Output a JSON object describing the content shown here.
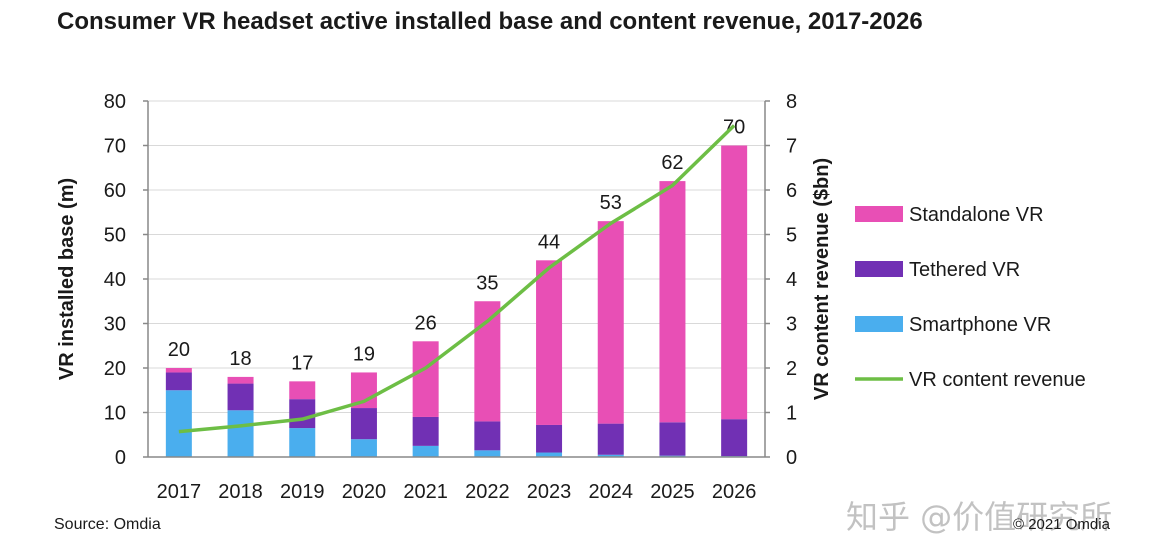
{
  "title": "Consumer VR headset active installed base and content revenue, 2017-2026",
  "source": "Source: Omdia",
  "copyright": "© 2021 Omdia",
  "watermark": "知乎 @价值研究所",
  "colors": {
    "standalone": "#E84FB5",
    "tethered": "#7130B4",
    "smartphone": "#4AAEEE",
    "revenue": "#6DBE45",
    "axis": "#888888",
    "grid": "#d9d9d9"
  },
  "chart_data": {
    "type": "bar",
    "stacked": true,
    "title": "Consumer VR headset active installed base and content revenue, 2017-2026",
    "categories": [
      "2017",
      "2018",
      "2019",
      "2020",
      "2021",
      "2022",
      "2023",
      "2024",
      "2025",
      "2026"
    ],
    "series": [
      {
        "name": "Smartphone VR",
        "axis": "left",
        "values": [
          15,
          10.5,
          6.5,
          4,
          2.5,
          1.5,
          1,
          0.5,
          0.3,
          0.2
        ]
      },
      {
        "name": "Tethered VR",
        "axis": "left",
        "values": [
          4,
          6,
          6.5,
          7,
          6.5,
          6.5,
          6.2,
          7,
          7.5,
          8.3
        ]
      },
      {
        "name": "Standalone VR",
        "axis": "left",
        "values": [
          1,
          1.5,
          4,
          8,
          17,
          27,
          37,
          45.5,
          54.2,
          61.5
        ]
      },
      {
        "name": "VR content revenue",
        "axis": "right",
        "type": "line",
        "values": [
          0.57,
          0.7,
          0.85,
          1.25,
          2.0,
          3.05,
          4.25,
          5.25,
          6.1,
          7.45
        ]
      }
    ],
    "totals": [
      "20",
      "18",
      "17",
      "19",
      "26",
      "35",
      "44",
      "53",
      "62",
      "70"
    ],
    "ylabel": "VR installed base (m)",
    "y2label": "VR content revenue ($bn)",
    "ylim": [
      0,
      80
    ],
    "y2lim": [
      0,
      8
    ],
    "yticks": [
      "0",
      "10",
      "20",
      "30",
      "40",
      "50",
      "60",
      "70",
      "80"
    ],
    "y2ticks": [
      "0",
      "1",
      "2",
      "3",
      "4",
      "5",
      "6",
      "7",
      "8"
    ],
    "legend": [
      "Standalone VR",
      "Tethered VR",
      "Smartphone VR",
      "VR content revenue"
    ],
    "legend_position": "right",
    "grid": true
  }
}
